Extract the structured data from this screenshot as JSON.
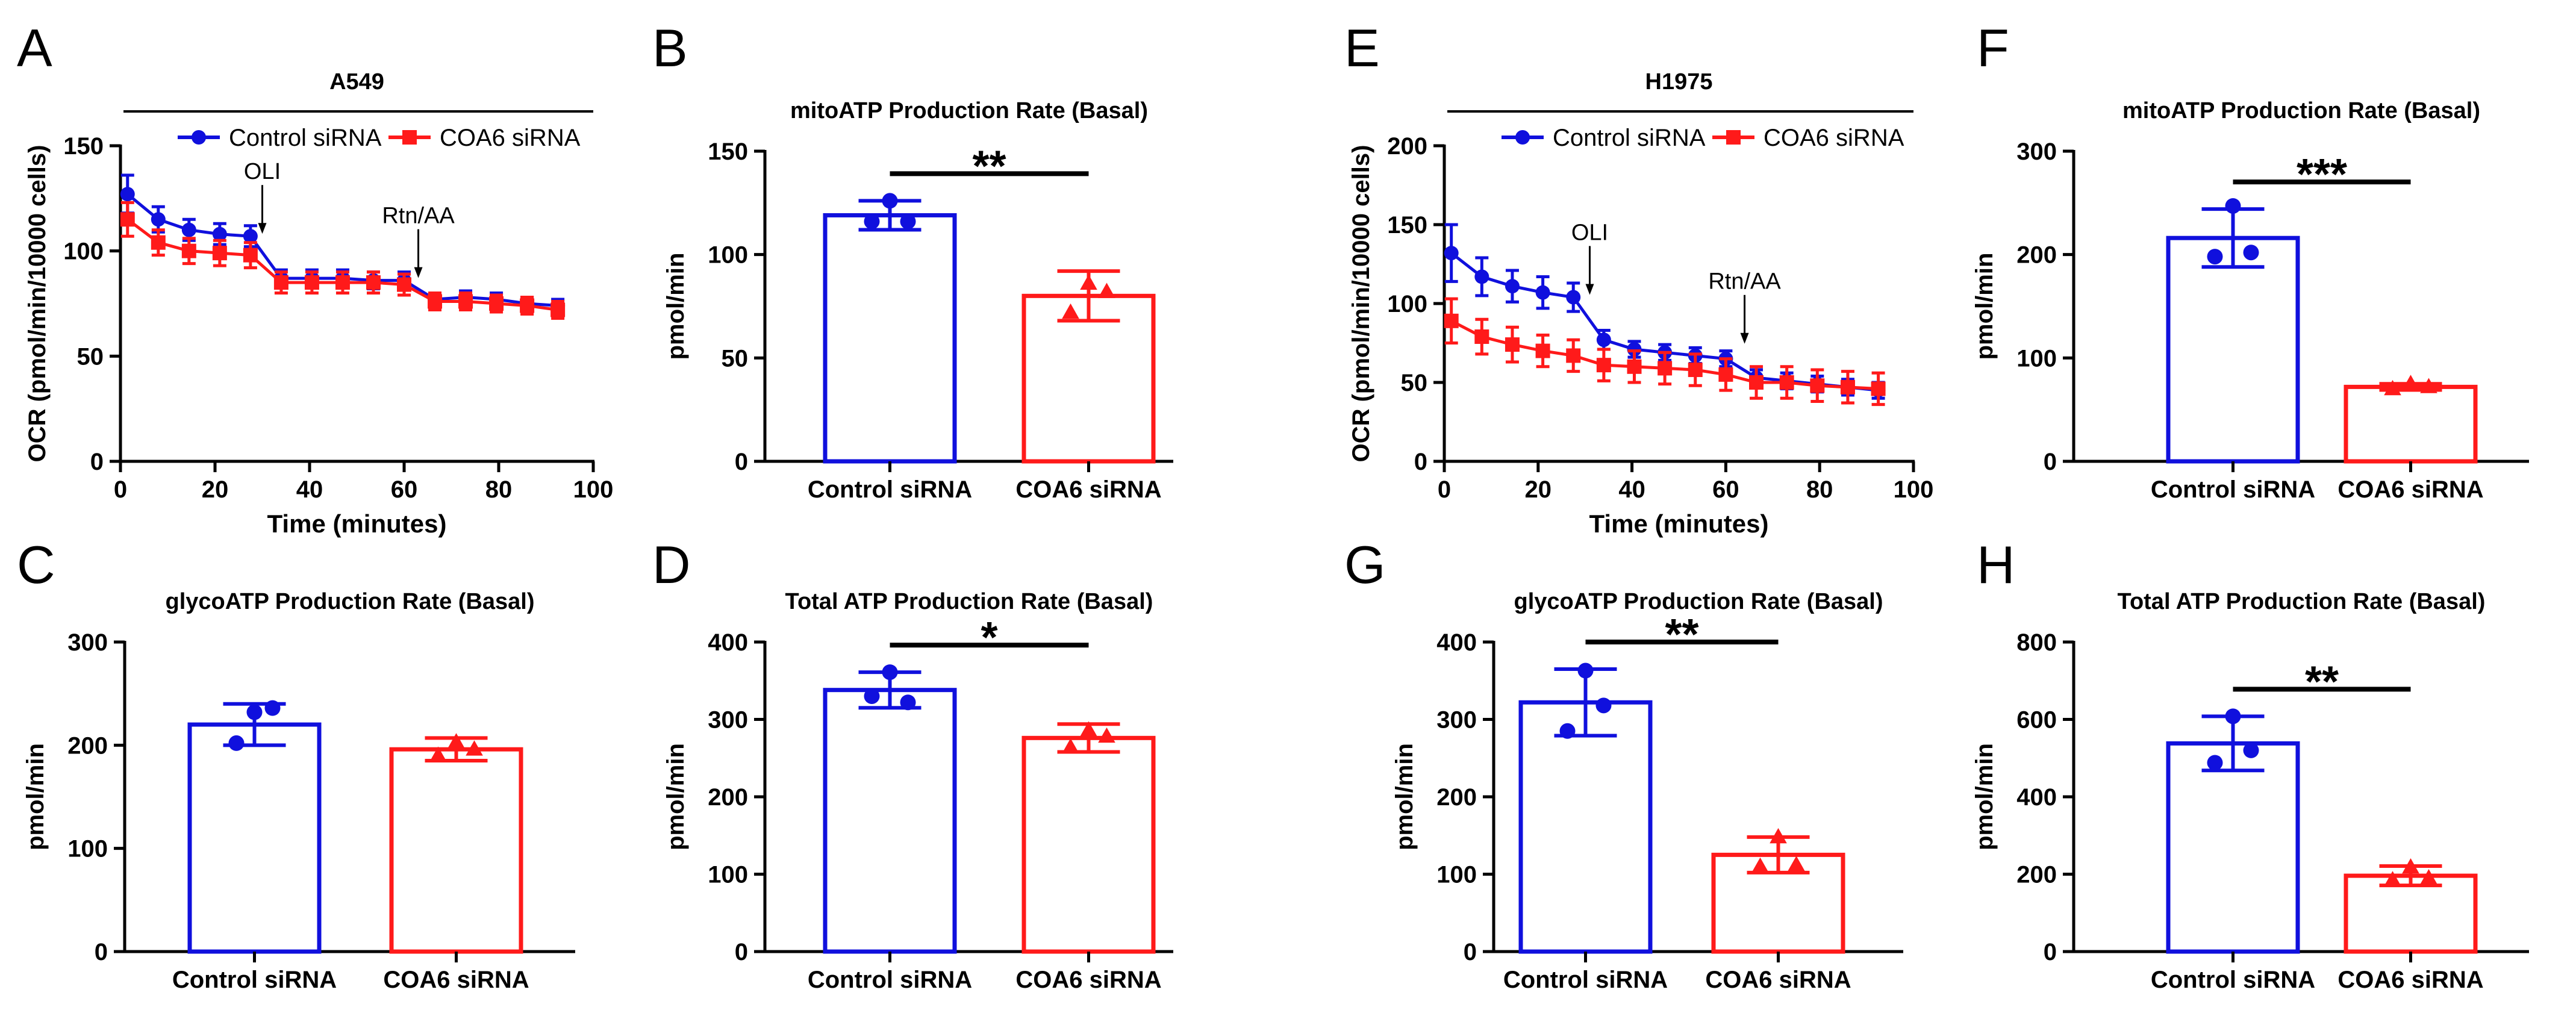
{
  "figure": {
    "blue": "#1010dd",
    "red": "#ff1a1a",
    "axis_color": "#000000"
  },
  "chart_data": [
    {
      "id": "A",
      "panel_letter": "A",
      "type": "line",
      "header": "A549",
      "title": "",
      "xlabel": "Time (minutes)",
      "ylabel": "OCR (pmol/min/10000 cells)",
      "xlim": [
        0,
        100
      ],
      "ylim": [
        0,
        150
      ],
      "xticks": [
        0,
        20,
        40,
        60,
        80,
        100
      ],
      "yticks": [
        0,
        50,
        100,
        150
      ],
      "legend": [
        "Control siRNA",
        "COA6 siRNA"
      ],
      "x": [
        1.5,
        8,
        14.5,
        21,
        27.5,
        34,
        40.5,
        47,
        53.5,
        60,
        66.5,
        73,
        79.5,
        86,
        92.5
      ],
      "series": [
        {
          "name": "Control siRNA",
          "color": "blue",
          "marker": "circle",
          "values": [
            127,
            115,
            110,
            108,
            107,
            87,
            87,
            87,
            86,
            86,
            77,
            78,
            77,
            75,
            74
          ],
          "errors": [
            9,
            6,
            5,
            5,
            5,
            4,
            4,
            4,
            4,
            4,
            3,
            3,
            3,
            3,
            3
          ]
        },
        {
          "name": "COA6 siRNA",
          "color": "red",
          "marker": "square",
          "values": [
            115,
            104,
            100,
            99,
            98,
            85,
            85,
            85,
            85,
            84,
            76,
            76,
            75,
            74,
            72
          ],
          "errors": [
            8,
            6,
            6,
            6,
            6,
            5,
            5,
            5,
            5,
            5,
            4,
            4,
            4,
            4,
            4
          ]
        }
      ],
      "annotations": [
        {
          "text": "OLI",
          "x": 30,
          "y": 107
        },
        {
          "text": "Rtn/AA",
          "x": 63,
          "y": 86
        }
      ]
    },
    {
      "id": "B",
      "panel_letter": "B",
      "type": "bar",
      "title": "mitoATP Production Rate (Basal)",
      "ylabel": "pmol/min",
      "categories": [
        "Control siRNA",
        "COA6 siRNA"
      ],
      "ylim": [
        0,
        150
      ],
      "yticks": [
        0,
        50,
        100,
        150
      ],
      "values": [
        119,
        80
      ],
      "errors": [
        7,
        12
      ],
      "points": [
        [
          126,
          116,
          116
        ],
        [
          86,
          72,
          82
        ]
      ],
      "significance": "**"
    },
    {
      "id": "C",
      "panel_letter": "C",
      "type": "bar",
      "title": "glycoATP Production Rate (Basal)",
      "ylabel": "pmol/min",
      "categories": [
        "Control siRNA",
        "COA6 siRNA"
      ],
      "ylim": [
        0,
        300
      ],
      "yticks": [
        0,
        100,
        200,
        300
      ],
      "values": [
        220,
        196
      ],
      "errors": [
        20,
        11
      ],
      "points": [
        [
          232,
          202,
          236
        ],
        [
          203,
          190,
          196
        ]
      ],
      "significance": ""
    },
    {
      "id": "D",
      "panel_letter": "D",
      "type": "bar",
      "title": "Total ATP Production Rate (Basal)",
      "ylabel": "pmol/min",
      "categories": [
        "Control siRNA",
        "COA6 siRNA"
      ],
      "ylim": [
        0,
        400
      ],
      "yticks": [
        0,
        100,
        200,
        300,
        400
      ],
      "values": [
        338,
        276
      ],
      "errors": [
        23,
        18
      ],
      "points": [
        [
          361,
          330,
          322
        ],
        [
          286,
          264,
          278
        ]
      ],
      "significance": "*"
    },
    {
      "id": "E",
      "panel_letter": "E",
      "type": "line",
      "header": "H1975",
      "title": "",
      "xlabel": "Time (minutes)",
      "ylabel": "OCR (pmol/min/10000 cells)",
      "xlim": [
        0,
        100
      ],
      "ylim": [
        0,
        200
      ],
      "xticks": [
        0,
        20,
        40,
        60,
        80,
        100
      ],
      "yticks": [
        0,
        50,
        100,
        150,
        200
      ],
      "legend": [
        "Control siRNA",
        "COA6 siRNA"
      ],
      "x": [
        1.5,
        8,
        14.5,
        21,
        27.5,
        34,
        40.5,
        47,
        53.5,
        60,
        66.5,
        73,
        79.5,
        86,
        92.5
      ],
      "series": [
        {
          "name": "Control siRNA",
          "color": "blue",
          "marker": "circle",
          "values": [
            132,
            117,
            111,
            107,
            104,
            77,
            71,
            69,
            67,
            65,
            53,
            51,
            49,
            47,
            45
          ],
          "errors": [
            18,
            12,
            10,
            10,
            9,
            6,
            5,
            5,
            5,
            5,
            5,
            5,
            5,
            5,
            5
          ]
        },
        {
          "name": "COA6 siRNA",
          "color": "red",
          "marker": "square",
          "values": [
            89,
            79,
            74,
            70,
            67,
            61,
            60,
            59,
            58,
            55,
            50,
            50,
            48,
            47,
            46
          ],
          "errors": [
            14,
            11,
            11,
            10,
            10,
            10,
            10,
            10,
            10,
            10,
            10,
            10,
            10,
            10,
            10
          ]
        }
      ],
      "annotations": [
        {
          "text": "OLI",
          "x": 31,
          "y": 104
        },
        {
          "text": "Rtn/AA",
          "x": 64,
          "y": 73
        }
      ]
    },
    {
      "id": "F",
      "panel_letter": "F",
      "type": "bar",
      "title": "mitoATP Production Rate (Basal)",
      "ylabel": "pmol/min",
      "categories": [
        "Control siRNA",
        "COA6 siRNA"
      ],
      "ylim": [
        0,
        300
      ],
      "yticks": [
        0,
        100,
        200,
        300
      ],
      "values": [
        216,
        72
      ],
      "errors": [
        28,
        3
      ],
      "points": [
        [
          247,
          198,
          202
        ],
        [
          75,
          70,
          72
        ]
      ],
      "significance": "***"
    },
    {
      "id": "G",
      "panel_letter": "G",
      "type": "bar",
      "title": "glycoATP Production Rate (Basal)",
      "ylabel": "pmol/min",
      "categories": [
        "Control siRNA",
        "COA6 siRNA"
      ],
      "ylim": [
        0,
        400
      ],
      "yticks": [
        0,
        100,
        200,
        300,
        400
      ],
      "values": [
        322,
        125
      ],
      "errors": [
        43,
        23
      ],
      "points": [
        [
          363,
          285,
          318
        ],
        [
          148,
          110,
          112
        ]
      ],
      "significance": "**"
    },
    {
      "id": "H",
      "panel_letter": "H",
      "type": "bar",
      "title": "Total ATP Production Rate (Basal)",
      "ylabel": "pmol/min",
      "categories": [
        "Control siRNA",
        "COA6 siRNA"
      ],
      "ylim": [
        0,
        800
      ],
      "yticks": [
        0,
        200,
        400,
        600,
        800
      ],
      "values": [
        538,
        196
      ],
      "errors": [
        70,
        25
      ],
      "points": [
        [
          608,
          488,
          520
        ],
        [
          218,
          185,
          190
        ]
      ],
      "significance": "**"
    }
  ]
}
